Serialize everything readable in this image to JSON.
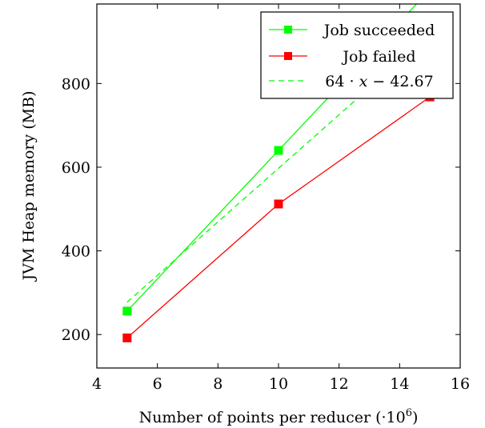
{
  "chart_data": {
    "type": "line",
    "xlabel": "Number of points per reducer (·10",
    "xlabel_exponent": "6",
    "xlabel_suffix": ")",
    "ylabel": "JVM Heap memory (MB)",
    "xlim": [
      4,
      16
    ],
    "ylim": [
      120,
      990
    ],
    "xticks": [
      4,
      6,
      8,
      10,
      12,
      14,
      16
    ],
    "yticks": [
      200,
      400,
      600,
      800
    ],
    "grid": false,
    "legend_position": "top-right",
    "series": [
      {
        "name": "Job succeeded",
        "color": "#00ff00",
        "marker": "square",
        "line": "solid",
        "x": [
          5,
          10,
          15
        ],
        "y": [
          256,
          640,
          1024
        ]
      },
      {
        "name": "Job failed",
        "color": "#ff0000",
        "marker": "square",
        "line": "solid",
        "x": [
          5,
          10,
          15
        ],
        "y": [
          192,
          512,
          768
        ]
      },
      {
        "name": "64 · x − 42.67",
        "name_parts": [
          "64 · ",
          "x",
          " − 42.67"
        ],
        "color": "#00ff00",
        "marker": "none",
        "line": "dashed",
        "slope": 64,
        "intercept": -42.67,
        "x_range": [
          5,
          15
        ]
      }
    ]
  }
}
